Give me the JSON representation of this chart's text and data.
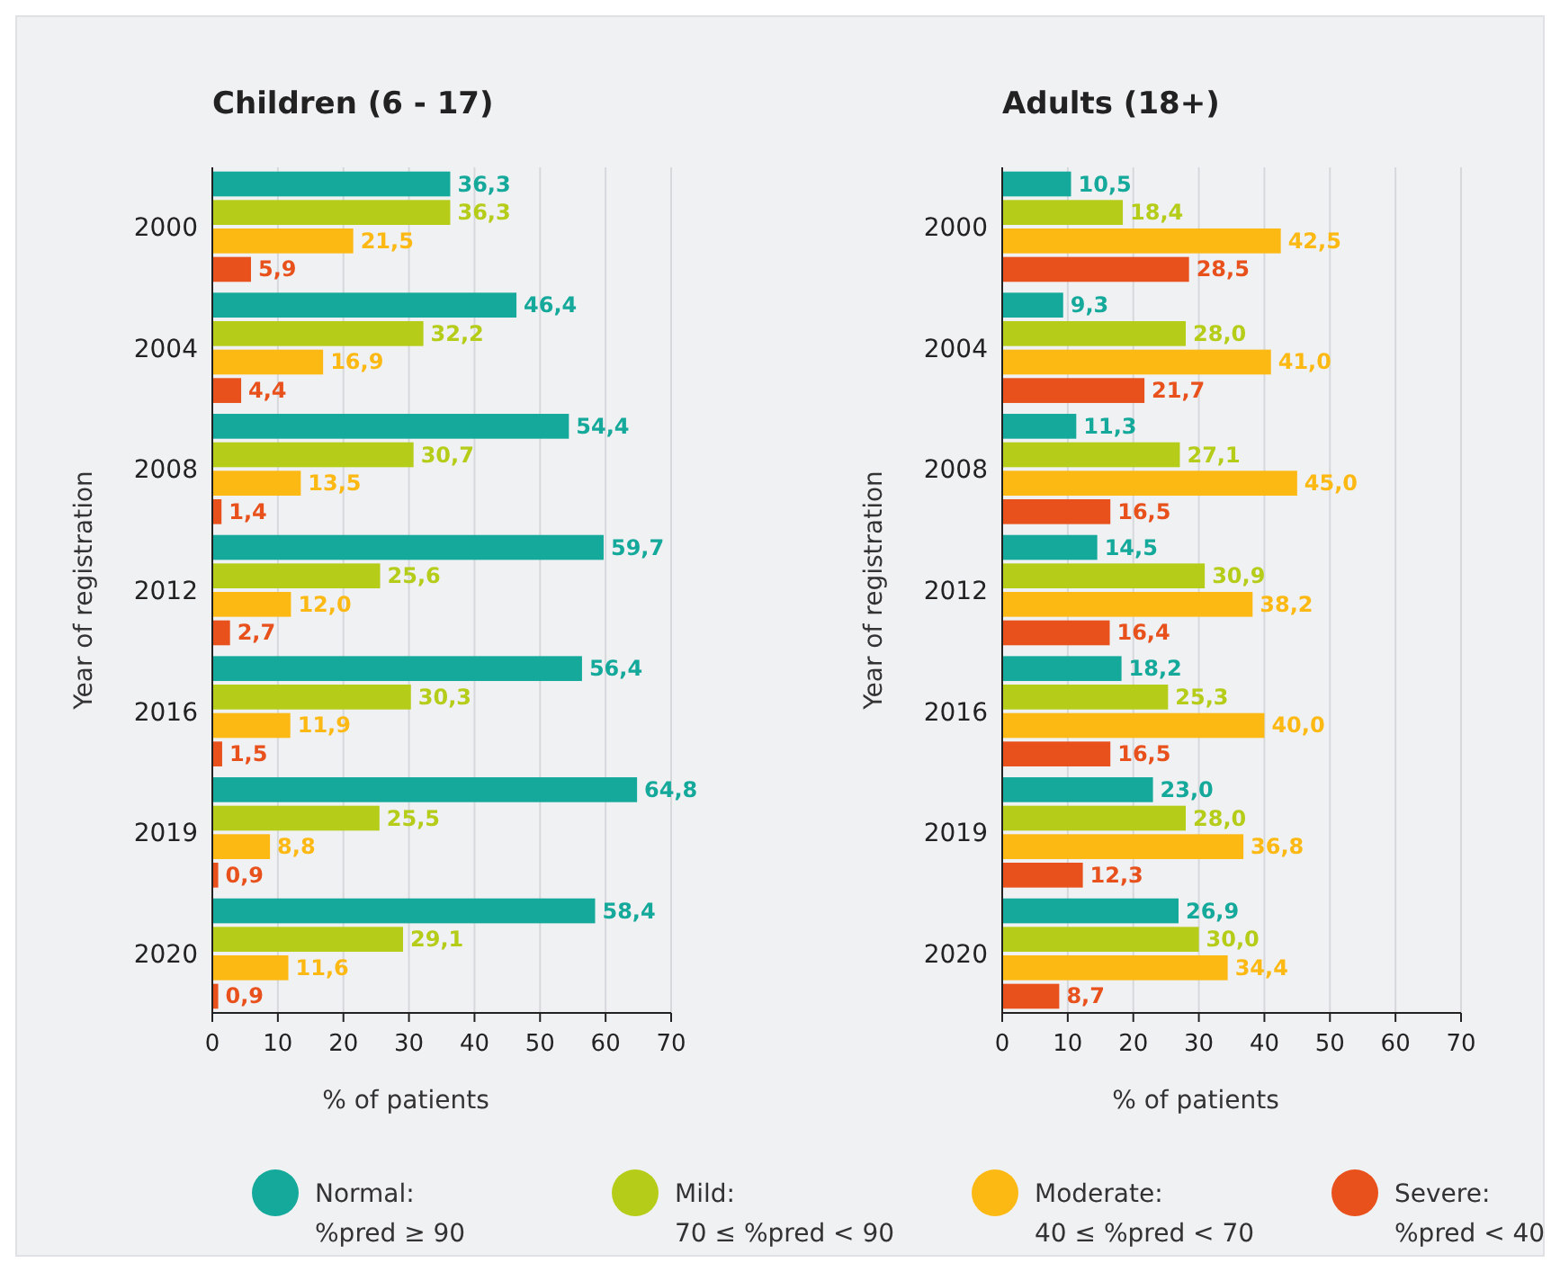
{
  "chart_data": [
    {
      "type": "bar",
      "orientation": "horizontal",
      "title": "Children (6 - 17)",
      "xlabel": "% of patients",
      "ylabel": "Year of registration",
      "categories": [
        "2000",
        "2004",
        "2008",
        "2012",
        "2016",
        "2019",
        "2020"
      ],
      "xlim": [
        0,
        70
      ],
      "xticks": [
        0,
        10,
        20,
        30,
        40,
        50,
        60,
        70
      ],
      "grid": "x",
      "legend": "bottom",
      "series": [
        {
          "name": "Normal: %pred ≥ 90",
          "color": "#14a99a",
          "values": [
            36.3,
            46.4,
            54.4,
            59.7,
            56.4,
            64.8,
            58.4
          ],
          "value_labels": [
            "36,3",
            "46,4",
            "54,4",
            "59,7",
            "56,4",
            "64,8",
            "58,4"
          ]
        },
        {
          "name": "Mild: 70 ≤ %pred < 90",
          "color": "#b5cc18",
          "values": [
            36.3,
            32.2,
            30.7,
            25.6,
            30.3,
            25.5,
            29.1
          ],
          "value_labels": [
            "36,3",
            "32,2",
            "30,7",
            "25,6",
            "30,3",
            "25,5",
            "29,1"
          ]
        },
        {
          "name": "Moderate: 40 ≤ %pred < 70",
          "color": "#fdb913",
          "values": [
            21.5,
            16.9,
            13.5,
            12.0,
            11.9,
            8.8,
            11.6
          ],
          "value_labels": [
            "21,5",
            "16,9",
            "13,5",
            "12,0",
            "11,9",
            "8,8",
            "11,6"
          ]
        },
        {
          "name": "Severe: %pred < 40",
          "color": "#e8501c",
          "values": [
            5.9,
            4.4,
            1.4,
            2.7,
            1.5,
            0.9,
            0.9
          ],
          "value_labels": [
            "5,9",
            "4,4",
            "1,4",
            "2,7",
            "1,5",
            "0,9",
            "0,9"
          ]
        }
      ]
    },
    {
      "type": "bar",
      "orientation": "horizontal",
      "title": "Adults (18+)",
      "xlabel": "% of patients",
      "ylabel": "Year of registration",
      "categories": [
        "2000",
        "2004",
        "2008",
        "2012",
        "2016",
        "2019",
        "2020"
      ],
      "xlim": [
        0,
        70
      ],
      "xticks": [
        0,
        10,
        20,
        30,
        40,
        50,
        60,
        70
      ],
      "grid": "x",
      "series": [
        {
          "color": "#14a99a",
          "values": [
            10.5,
            9.3,
            11.3,
            14.5,
            18.2,
            23.0,
            26.9
          ],
          "value_labels": [
            "10,5",
            "9,3",
            "11,3",
            "14,5",
            "18,2",
            "23,0",
            "26,9"
          ]
        },
        {
          "color": "#b5cc18",
          "values": [
            18.4,
            28.0,
            27.1,
            30.9,
            25.3,
            28.0,
            30.0
          ],
          "value_labels": [
            "18,4",
            "28,0",
            "27,1",
            "30,9",
            "25,3",
            "28,0",
            "30,0"
          ]
        },
        {
          "color": "#fdb913",
          "values": [
            42.5,
            41.0,
            45.0,
            38.2,
            40.0,
            36.8,
            34.4
          ],
          "value_labels": [
            "42,5",
            "41,0",
            "45,0",
            "38,2",
            "40,0",
            "36,8",
            "34,4"
          ]
        },
        {
          "color": "#e8501c",
          "values": [
            28.5,
            21.7,
            16.5,
            16.4,
            16.5,
            12.3,
            8.7
          ],
          "value_labels": [
            "28,5",
            "21,7",
            "16,5",
            "16,4",
            "16,5",
            "12,3",
            "8,7"
          ]
        }
      ]
    }
  ]
}
